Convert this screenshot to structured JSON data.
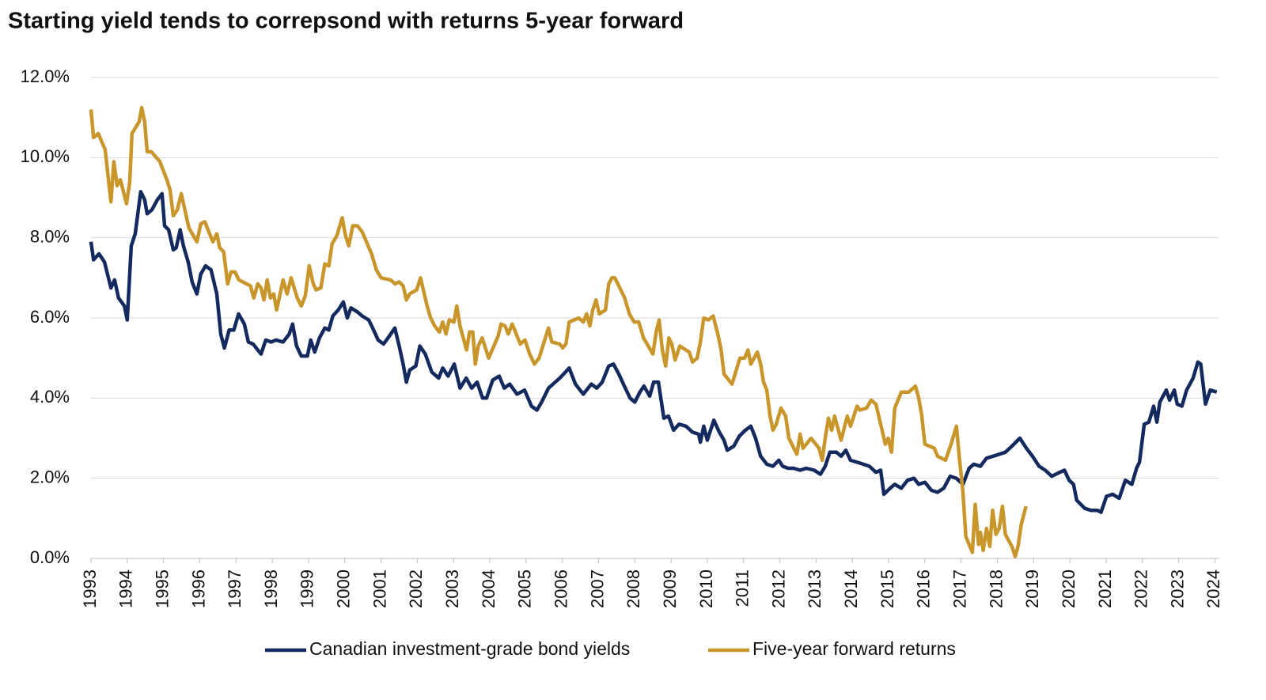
{
  "chart_data": {
    "type": "line",
    "title": "Starting yield tends to correpsond with returns 5-year forward",
    "xlim": [
      1993,
      2024.1
    ],
    "xticks": [
      1993,
      1994,
      1995,
      1996,
      1997,
      1998,
      1999,
      2000,
      2001,
      2002,
      2003,
      2004,
      2005,
      2006,
      2007,
      2008,
      2009,
      2010,
      2011,
      2012,
      2013,
      2014,
      2015,
      2016,
      2017,
      2018,
      2019,
      2020,
      2021,
      2022,
      2023,
      2024
    ],
    "ylim": [
      0,
      12
    ],
    "yticks": [
      {
        "value": 0,
        "label": "0.0%"
      },
      {
        "value": 2,
        "label": "2.0%"
      },
      {
        "value": 4,
        "label": "4.0%"
      },
      {
        "value": 6,
        "label": "6.0%"
      },
      {
        "value": 8,
        "label": "8.0%"
      },
      {
        "value": 10,
        "label": "10.0%"
      },
      {
        "value": 12,
        "label": "12.0%"
      }
    ],
    "grid": true,
    "legend": "bottom",
    "series": [
      {
        "name": "Canadian investment-grade bond yields",
        "color": "#14295e",
        "x": [
          1993.0,
          1993.07,
          1993.22,
          1993.37,
          1993.55,
          1993.65,
          1993.76,
          1993.92,
          1994.0,
          1994.11,
          1994.22,
          1994.37,
          1994.48,
          1994.55,
          1994.68,
          1994.83,
          1994.96,
          1995.03,
          1995.14,
          1995.27,
          1995.35,
          1995.46,
          1995.55,
          1995.68,
          1995.79,
          1995.92,
          1996.03,
          1996.16,
          1996.31,
          1996.47,
          1996.58,
          1996.68,
          1996.81,
          1996.94,
          1997.07,
          1997.23,
          1997.34,
          1997.47,
          1997.69,
          1997.82,
          1997.97,
          1998.1,
          1998.3,
          1998.47,
          1998.56,
          1998.67,
          1998.8,
          1998.97,
          1999.06,
          1999.17,
          1999.3,
          1999.45,
          1999.56,
          1999.67,
          1999.82,
          1999.96,
          2000.07,
          2000.17,
          2000.35,
          2000.48,
          2000.66,
          2000.77,
          2000.92,
          2001.07,
          2001.23,
          2001.38,
          2001.5,
          2001.61,
          2001.7,
          2001.79,
          2001.96,
          2002.07,
          2002.22,
          2002.4,
          2002.59,
          2002.7,
          2002.85,
          2003.02,
          2003.18,
          2003.35,
          2003.5,
          2003.65,
          2003.8,
          2003.91,
          2004.08,
          2004.26,
          2004.4,
          2004.55,
          2004.75,
          2004.96,
          2005.15,
          2005.3,
          2005.43,
          2005.62,
          2005.93,
          2006.19,
          2006.36,
          2006.58,
          2006.8,
          2006.95,
          2007.1,
          2007.28,
          2007.41,
          2007.56,
          2007.71,
          2007.87,
          2008.0,
          2008.14,
          2008.25,
          2008.41,
          2008.52,
          2008.65,
          2008.8,
          2008.93,
          2009.07,
          2009.22,
          2009.41,
          2009.59,
          2009.76,
          2009.81,
          2009.9,
          2010.0,
          2010.18,
          2010.33,
          2010.46,
          2010.55,
          2010.73,
          2010.88,
          2011.05,
          2011.2,
          2011.33,
          2011.47,
          2011.64,
          2011.81,
          2011.97,
          2012.08,
          2012.23,
          2012.38,
          2012.56,
          2012.73,
          2012.95,
          2013.12,
          2013.25,
          2013.38,
          2013.56,
          2013.69,
          2013.82,
          2013.95,
          2014.13,
          2014.3,
          2014.47,
          2014.65,
          2014.78,
          2014.87,
          2015.04,
          2015.17,
          2015.35,
          2015.52,
          2015.7,
          2015.83,
          2016.0,
          2016.18,
          2016.35,
          2016.52,
          2016.7,
          2016.87,
          2017.05,
          2017.22,
          2017.35,
          2017.53,
          2017.7,
          2017.88,
          2018.05,
          2018.22,
          2018.4,
          2018.62,
          2018.8,
          2018.97,
          2019.15,
          2019.32,
          2019.5,
          2019.72,
          2019.85,
          2019.98,
          2020.1,
          2020.19,
          2020.41,
          2020.58,
          2020.76,
          2020.86,
          2021.01,
          2021.18,
          2021.36,
          2021.53,
          2021.71,
          2021.84,
          2021.92,
          2022.05,
          2022.18,
          2022.31,
          2022.4,
          2022.48,
          2022.66,
          2022.75,
          2022.88,
          2022.96,
          2023.09,
          2023.22,
          2023.4,
          2023.53,
          2023.61,
          2023.74,
          2023.87,
          2024.05
        ],
        "values": [
          7.9,
          7.45,
          7.6,
          7.4,
          6.75,
          6.95,
          6.5,
          6.3,
          5.95,
          7.8,
          8.1,
          9.15,
          8.95,
          8.6,
          8.7,
          8.95,
          9.1,
          8.3,
          8.2,
          7.7,
          7.75,
          8.2,
          7.8,
          7.4,
          6.9,
          6.6,
          7.1,
          7.3,
          7.2,
          6.6,
          5.6,
          5.25,
          5.7,
          5.7,
          6.1,
          5.85,
          5.4,
          5.35,
          5.1,
          5.45,
          5.4,
          5.45,
          5.4,
          5.6,
          5.85,
          5.3,
          5.05,
          5.05,
          5.45,
          5.15,
          5.5,
          5.75,
          5.7,
          6.05,
          6.2,
          6.4,
          6.0,
          6.25,
          6.15,
          6.05,
          5.95,
          5.75,
          5.45,
          5.35,
          5.55,
          5.75,
          5.3,
          4.85,
          4.4,
          4.7,
          4.8,
          5.3,
          5.1,
          4.65,
          4.5,
          4.75,
          4.55,
          4.85,
          4.25,
          4.5,
          4.25,
          4.4,
          4.0,
          4.0,
          4.45,
          4.55,
          4.25,
          4.35,
          4.1,
          4.2,
          3.8,
          3.7,
          3.9,
          4.25,
          4.5,
          4.75,
          4.35,
          4.1,
          4.35,
          4.25,
          4.4,
          4.8,
          4.85,
          4.6,
          4.3,
          4.0,
          3.9,
          4.15,
          4.3,
          4.05,
          4.4,
          4.4,
          3.5,
          3.55,
          3.2,
          3.35,
          3.3,
          3.15,
          3.1,
          2.9,
          3.3,
          2.95,
          3.45,
          3.15,
          2.95,
          2.7,
          2.8,
          3.05,
          3.2,
          3.3,
          3.0,
          2.55,
          2.35,
          2.3,
          2.45,
          2.3,
          2.25,
          2.25,
          2.2,
          2.25,
          2.2,
          2.1,
          2.3,
          2.65,
          2.65,
          2.55,
          2.7,
          2.45,
          2.4,
          2.35,
          2.3,
          2.15,
          2.2,
          1.6,
          1.75,
          1.85,
          1.75,
          1.95,
          2.0,
          1.85,
          1.9,
          1.7,
          1.65,
          1.75,
          2.05,
          2.0,
          1.85,
          2.25,
          2.35,
          2.3,
          2.5,
          2.55,
          2.6,
          2.65,
          2.8,
          3.0,
          2.75,
          2.55,
          2.3,
          2.2,
          2.05,
          2.15,
          2.2,
          1.95,
          1.85,
          1.45,
          1.25,
          1.2,
          1.2,
          1.15,
          1.55,
          1.6,
          1.5,
          1.95,
          1.85,
          2.25,
          2.4,
          3.35,
          3.4,
          3.8,
          3.4,
          3.9,
          4.2,
          3.95,
          4.2,
          3.85,
          3.8,
          4.2,
          4.5,
          4.9,
          4.85,
          3.85,
          4.2,
          4.15
        ]
      },
      {
        "name": "Five-year forward returns",
        "color": "#c9962b",
        "x": [
          1993.0,
          1993.07,
          1993.2,
          1993.39,
          1993.55,
          1993.63,
          1993.72,
          1993.81,
          1993.98,
          1994.07,
          1994.13,
          1994.33,
          1994.4,
          1994.48,
          1994.55,
          1994.66,
          1994.9,
          1995.09,
          1995.18,
          1995.27,
          1995.38,
          1995.49,
          1995.7,
          1995.92,
          1996.03,
          1996.14,
          1996.36,
          1996.47,
          1996.55,
          1996.66,
          1996.77,
          1996.86,
          1996.97,
          1997.08,
          1997.29,
          1997.4,
          1997.49,
          1997.6,
          1997.69,
          1997.77,
          1997.86,
          1997.95,
          1998.04,
          1998.12,
          1998.3,
          1998.41,
          1998.52,
          1998.69,
          1998.8,
          1998.91,
          1999.02,
          1999.13,
          1999.21,
          1999.34,
          1999.45,
          1999.56,
          1999.65,
          1999.78,
          1999.93,
          2000.02,
          2000.11,
          2000.22,
          2000.35,
          2000.48,
          2000.74,
          2000.87,
          2001.0,
          2001.26,
          2001.39,
          2001.5,
          2001.61,
          2001.7,
          2001.79,
          2001.98,
          2002.09,
          2002.18,
          2002.27,
          2002.37,
          2002.48,
          2002.61,
          2002.7,
          2002.79,
          2002.88,
          2003.01,
          2003.09,
          2003.18,
          2003.36,
          2003.44,
          2003.53,
          2003.6,
          2003.68,
          2003.79,
          2003.97,
          2004.23,
          2004.31,
          2004.42,
          2004.51,
          2004.62,
          2004.84,
          2004.97,
          2005.1,
          2005.23,
          2005.36,
          2005.62,
          2005.71,
          2005.93,
          2006.01,
          2006.1,
          2006.19,
          2006.45,
          2006.58,
          2006.67,
          2006.76,
          2006.84,
          2006.93,
          2007.02,
          2007.19,
          2007.28,
          2007.37,
          2007.45,
          2007.72,
          2007.85,
          2007.98,
          2008.11,
          2008.24,
          2008.37,
          2008.5,
          2008.59,
          2008.67,
          2008.76,
          2008.85,
          2008.94,
          2009.02,
          2009.11,
          2009.24,
          2009.5,
          2009.59,
          2009.72,
          2009.81,
          2009.9,
          2010.03,
          2010.16,
          2010.29,
          2010.38,
          2010.46,
          2010.68,
          2010.9,
          2011.03,
          2011.12,
          2011.2,
          2011.38,
          2011.47,
          2011.55,
          2011.64,
          2011.73,
          2011.81,
          2011.9,
          2012.03,
          2012.16,
          2012.25,
          2012.47,
          2012.56,
          2012.64,
          2012.86,
          2013.08,
          2013.17,
          2013.25,
          2013.34,
          2013.43,
          2013.51,
          2013.69,
          2013.86,
          2013.95,
          2014.13,
          2014.21,
          2014.39,
          2014.52,
          2014.65,
          2014.82,
          2014.91,
          2014.99,
          2015.08,
          2015.17,
          2015.35,
          2015.56,
          2015.74,
          2015.83,
          2015.91,
          2016.0,
          2016.26,
          2016.35,
          2016.57,
          2016.74,
          2016.87,
          2016.96,
          2017.05,
          2017.13,
          2017.31,
          2017.39,
          2017.48,
          2017.53,
          2017.61,
          2017.7,
          2017.79,
          2017.87,
          2017.96,
          2018.05,
          2018.14,
          2018.22,
          2018.4,
          2018.49,
          2018.57,
          2018.66,
          2018.79
        ],
        "values": [
          11.2,
          10.5,
          10.6,
          10.2,
          8.9,
          9.9,
          9.3,
          9.45,
          8.85,
          9.4,
          10.6,
          10.9,
          11.25,
          10.9,
          10.15,
          10.15,
          9.9,
          9.45,
          9.2,
          8.55,
          8.7,
          9.1,
          8.25,
          7.9,
          8.35,
          8.4,
          7.9,
          8.1,
          7.75,
          7.65,
          6.85,
          7.15,
          7.15,
          6.95,
          6.85,
          6.8,
          6.5,
          6.85,
          6.75,
          6.45,
          6.95,
          6.5,
          6.6,
          6.2,
          6.95,
          6.6,
          7.0,
          6.5,
          6.3,
          6.55,
          7.3,
          6.85,
          6.7,
          6.75,
          7.35,
          7.3,
          7.85,
          8.05,
          8.5,
          8.05,
          7.8,
          8.3,
          8.3,
          8.15,
          7.6,
          7.2,
          7.0,
          6.95,
          6.85,
          6.9,
          6.8,
          6.45,
          6.6,
          6.7,
          7.0,
          6.65,
          6.3,
          6.0,
          5.8,
          5.65,
          5.9,
          5.6,
          5.95,
          5.9,
          6.3,
          5.8,
          5.2,
          5.65,
          5.65,
          4.85,
          5.3,
          5.5,
          5.0,
          5.55,
          5.85,
          5.8,
          5.6,
          5.85,
          5.35,
          5.45,
          5.1,
          4.85,
          5.0,
          5.75,
          5.4,
          5.35,
          5.25,
          5.35,
          5.9,
          6.0,
          5.9,
          6.1,
          5.8,
          6.2,
          6.45,
          6.1,
          6.2,
          6.85,
          7.0,
          7.0,
          6.5,
          6.1,
          5.9,
          5.9,
          5.5,
          5.3,
          5.1,
          5.65,
          5.95,
          5.2,
          4.8,
          5.5,
          5.35,
          4.95,
          5.3,
          5.15,
          4.9,
          5.0,
          5.4,
          6.0,
          5.95,
          6.05,
          5.6,
          5.2,
          4.6,
          4.35,
          5.0,
          5.0,
          5.2,
          4.85,
          5.15,
          4.85,
          4.4,
          4.2,
          3.55,
          3.2,
          3.35,
          3.75,
          3.55,
          3.0,
          2.6,
          3.1,
          2.75,
          3.0,
          2.75,
          2.45,
          3.0,
          3.5,
          3.2,
          3.55,
          2.95,
          3.55,
          3.3,
          3.8,
          3.7,
          3.75,
          3.95,
          3.85,
          3.2,
          2.85,
          3.0,
          2.65,
          3.75,
          4.15,
          4.15,
          4.3,
          4.0,
          3.6,
          2.85,
          2.75,
          2.55,
          2.45,
          2.9,
          3.3,
          2.45,
          1.65,
          0.55,
          0.15,
          1.35,
          0.35,
          0.65,
          0.2,
          0.75,
          0.3,
          1.2,
          0.6,
          0.75,
          1.3,
          0.6,
          0.3,
          0.05,
          0.3,
          0.85,
          1.3
        ]
      }
    ]
  }
}
